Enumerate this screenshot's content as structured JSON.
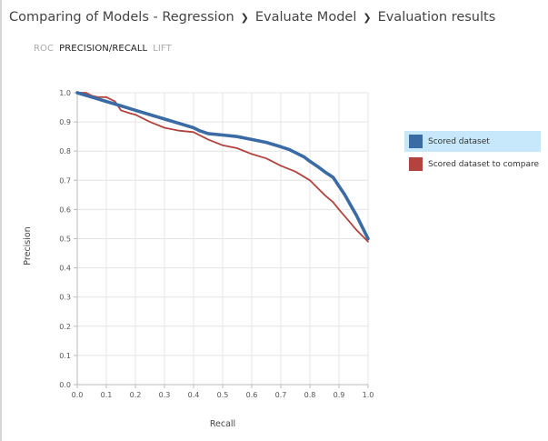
{
  "breadcrumb": {
    "items": [
      "Comparing of Models - Regression",
      "Evaluate Model",
      "Evaluation results"
    ],
    "separator": "❯"
  },
  "tabs": [
    {
      "label": "ROC",
      "active": false
    },
    {
      "label": "PRECISION/RECALL",
      "active": true
    },
    {
      "label": "LIFT",
      "active": false
    }
  ],
  "colors": {
    "series1": "#3a6ba5",
    "series2": "#b3433f",
    "selection": "#c7e8fa"
  },
  "chart_data": {
    "type": "line",
    "title": "",
    "xlabel": "Recall",
    "ylabel": "Precision",
    "xlim": [
      0,
      1
    ],
    "ylim": [
      0,
      1
    ],
    "xticks": [
      "0.0",
      "0.1",
      "0.2",
      "0.3",
      "0.4",
      "0.5",
      "0.6",
      "0.7",
      "0.8",
      "0.9",
      "1.0"
    ],
    "yticks": [
      "0.0",
      "0.1",
      "0.2",
      "0.3",
      "0.4",
      "0.5",
      "0.6",
      "0.7",
      "0.8",
      "0.9",
      "1.0"
    ],
    "grid": true,
    "legend_position": "right",
    "series": [
      {
        "name": "Scored dataset",
        "x": [
          0.0,
          0.05,
          0.1,
          0.15,
          0.2,
          0.25,
          0.3,
          0.35,
          0.4,
          0.42,
          0.45,
          0.5,
          0.55,
          0.6,
          0.65,
          0.7,
          0.73,
          0.75,
          0.78,
          0.8,
          0.83,
          0.85,
          0.88,
          0.9,
          0.92,
          0.94,
          0.96,
          0.98,
          1.0
        ],
        "y": [
          1.0,
          0.985,
          0.97,
          0.955,
          0.94,
          0.925,
          0.91,
          0.895,
          0.88,
          0.87,
          0.86,
          0.855,
          0.85,
          0.84,
          0.83,
          0.815,
          0.805,
          0.795,
          0.78,
          0.765,
          0.745,
          0.73,
          0.71,
          0.68,
          0.65,
          0.615,
          0.58,
          0.54,
          0.5
        ]
      },
      {
        "name": "Scored dataset to compare",
        "x": [
          0.0,
          0.03,
          0.05,
          0.07,
          0.1,
          0.13,
          0.15,
          0.18,
          0.2,
          0.25,
          0.3,
          0.35,
          0.4,
          0.45,
          0.5,
          0.55,
          0.6,
          0.65,
          0.7,
          0.75,
          0.8,
          0.83,
          0.85,
          0.88,
          0.9,
          0.93,
          0.96,
          1.0
        ],
        "y": [
          1.0,
          1.0,
          0.99,
          0.985,
          0.985,
          0.97,
          0.94,
          0.93,
          0.925,
          0.9,
          0.88,
          0.87,
          0.865,
          0.84,
          0.82,
          0.81,
          0.79,
          0.775,
          0.75,
          0.73,
          0.7,
          0.67,
          0.65,
          0.625,
          0.6,
          0.565,
          0.53,
          0.49
        ]
      }
    ]
  }
}
